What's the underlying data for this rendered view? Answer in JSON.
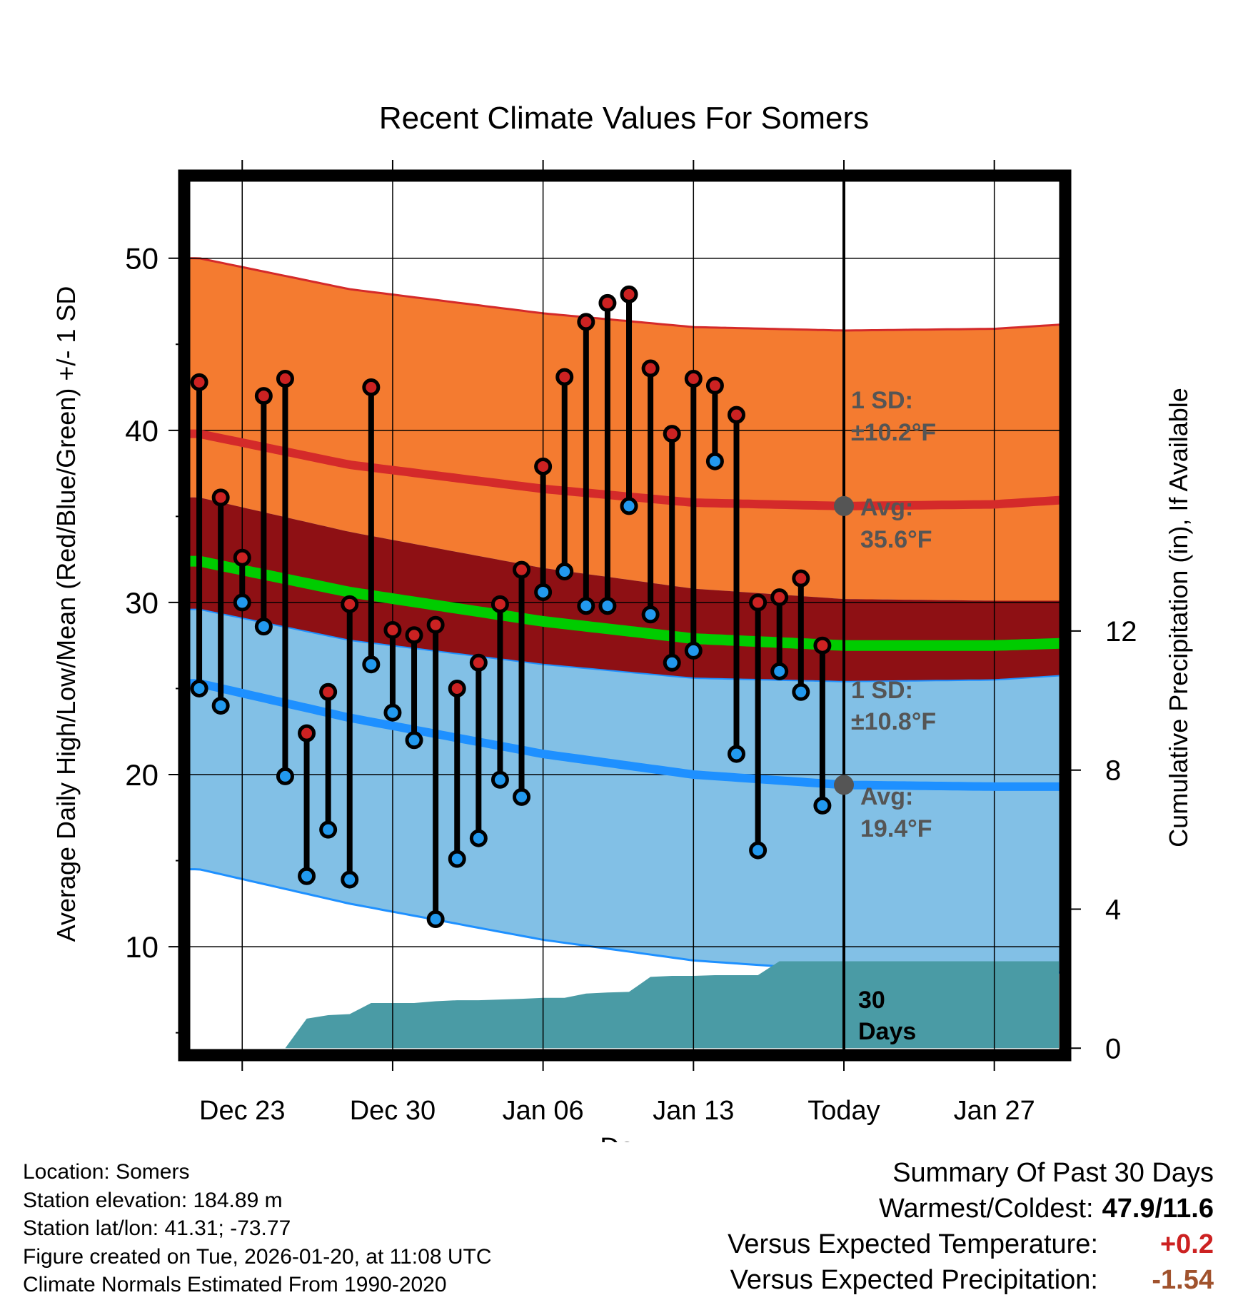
{
  "chart_data": {
    "type": "line",
    "title": "Recent Climate Values For Somers",
    "xlabel": "Day",
    "ylabel": "Average Daily High/Low/Mean (Red/Blue/Green) +/- 1 SD",
    "y2label": "Cumulative Precipitation (in), If Available",
    "ylim": [
      3.7,
      54.8
    ],
    "yticks": [
      10,
      20,
      30,
      40,
      50
    ],
    "y2lim": [
      -0.2,
      25.1
    ],
    "y2ticks": [
      0,
      4,
      8,
      12
    ],
    "xlim": [
      -2.7,
      38.3
    ],
    "xtick_days": [
      0,
      7,
      14,
      21,
      28,
      35
    ],
    "xtick_labels": [
      "Dec 23",
      "Dec 30",
      "Jan 06",
      "Jan 13",
      "Today",
      "Jan 27"
    ],
    "today_day": 28,
    "days": [
      -2,
      -1,
      0,
      1,
      2,
      3,
      4,
      5,
      6,
      7,
      8,
      9,
      10,
      11,
      12,
      13,
      14,
      15,
      16,
      17,
      18,
      19,
      20,
      21,
      22,
      23,
      24,
      25,
      26,
      27
    ],
    "highs": [
      42.8,
      36.1,
      32.6,
      42.0,
      43.0,
      22.4,
      24.8,
      29.9,
      42.5,
      28.4,
      28.1,
      28.7,
      25.0,
      26.5,
      29.9,
      31.9,
      37.9,
      43.1,
      46.3,
      47.4,
      47.9,
      43.6,
      39.8,
      43.0,
      42.6,
      40.9,
      30.0,
      30.3,
      31.4,
      27.5
    ],
    "lows": [
      25.0,
      24.0,
      30.0,
      28.6,
      19.9,
      14.1,
      16.8,
      13.9,
      26.4,
      23.6,
      22.0,
      11.6,
      15.1,
      16.3,
      19.7,
      18.7,
      30.6,
      31.8,
      29.8,
      29.8,
      35.6,
      29.3,
      26.5,
      27.2,
      38.2,
      21.2,
      15.6,
      26.0,
      24.8,
      18.2
    ],
    "normals": {
      "nodes": [
        -2,
        5,
        14,
        21,
        28,
        35,
        40
      ],
      "avg_high": [
        39.8,
        38.0,
        36.6,
        35.8,
        35.6,
        35.7,
        36.1
      ],
      "avg_low": [
        25.3,
        23.3,
        21.2,
        20.0,
        19.4,
        19.3,
        19.3
      ],
      "avg_mean": [
        32.4,
        30.6,
        28.9,
        27.9,
        27.5,
        27.5,
        27.7
      ],
      "high_sd": 10.2,
      "low_sd": 10.8
    },
    "precip": {
      "days": [
        2,
        3,
        4,
        5,
        6,
        7,
        8,
        9,
        10,
        11,
        12,
        13,
        14,
        15,
        16,
        17,
        18,
        19,
        20,
        21,
        22,
        23,
        24,
        25,
        26,
        27,
        28,
        29,
        30,
        31,
        32,
        33,
        34,
        35,
        36,
        37,
        38
      ],
      "values": [
        0.0,
        0.85,
        0.95,
        0.98,
        1.3,
        1.3,
        1.3,
        1.35,
        1.38,
        1.38,
        1.4,
        1.42,
        1.45,
        1.45,
        1.57,
        1.6,
        1.62,
        2.05,
        2.08,
        2.08,
        2.1,
        2.1,
        2.1,
        2.5,
        2.5,
        2.5,
        2.5,
        2.5,
        2.5,
        2.5,
        2.5,
        2.5,
        2.5,
        2.5,
        2.5,
        2.5,
        2.5
      ]
    },
    "annotations": {
      "high_sd_line1": "1 SD:",
      "high_sd_line2": "±10.2°F",
      "high_avg_line1": "Avg:",
      "high_avg_line2": "35.6°F",
      "low_sd_line1": "1 SD:",
      "low_sd_line2": "±10.8°F",
      "low_avg_line1": "Avg:",
      "low_avg_line2": "19.4°F",
      "precip_line1": "30",
      "precip_line2": "Days"
    },
    "colors": {
      "high_band": "#f47b30",
      "high_line": "#d42a2a",
      "low_band": "#82c0e6",
      "low_line": "#1e90ff",
      "overlap_band": "#8e1014",
      "mean_line": "#00cc00",
      "precip_fill": "#4a9ba5",
      "high_dot": "#cc2222",
      "low_dot": "#2299ee",
      "avg_marker": "#555555",
      "annotation_text": "#555555"
    }
  },
  "location": "Location: Somers",
  "elevation": "Station elevation: 184.89 m",
  "latlon": "Station lat/lon: 41.31; -73.77",
  "created": "Figure created on Tue, 2026-01-20, at 11:08 UTC",
  "normals_note": "Climate Normals Estimated From 1990-2020",
  "summary": {
    "title": "Summary Of Past 30 Days",
    "warm_cold_label": "Warmest/Coldest:",
    "warm_cold_value": "47.9/11.6",
    "temp_label": "Versus Expected Temperature:",
    "temp_value": "+0.2",
    "temp_color": "#cc2222",
    "precip_label": "Versus Expected Precipitation:",
    "precip_value": "-1.54",
    "precip_color": "#a0522d"
  }
}
